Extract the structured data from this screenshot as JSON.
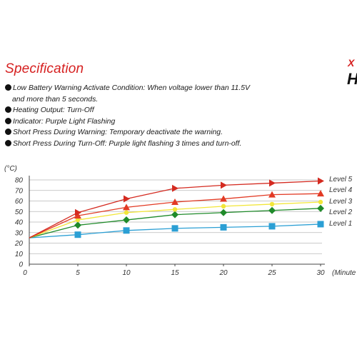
{
  "header": {
    "title": "Specification",
    "edge_mark_top": "X",
    "edge_mark_bottom": "H"
  },
  "specs": [
    {
      "text": "Low Battery Warning Activate Condition: When voltage lower than 11.5V"
    },
    {
      "text": "and more than 5 seconds.",
      "continuation": true
    },
    {
      "text": "Heating Output: Turn-Off"
    },
    {
      "text": "Indicator: Purple Light Flashing"
    },
    {
      "text": "Short Press During Warning: Temporary deactivate the warning."
    },
    {
      "text": "Short Press During Turn-Off: Purple light flashing 3 times and turn-off."
    }
  ],
  "chart_data": {
    "type": "line",
    "y_unit_label": "(°C)",
    "x_unit_label": "(Minute",
    "x": [
      0,
      5,
      10,
      15,
      20,
      25,
      30
    ],
    "x_ticks": [
      "0",
      "5",
      "10",
      "15",
      "20",
      "25",
      "30"
    ],
    "y_ticks": [
      "0",
      "10",
      "20",
      "30",
      "40",
      "50",
      "60",
      "70",
      "80"
    ],
    "xlim": [
      0,
      30
    ],
    "ylim": [
      0,
      80
    ],
    "grid": "horizontal",
    "legend": "labels at line ends, right",
    "series": [
      {
        "name": "Level 5",
        "color": "#d42a20",
        "marker": "triangle-right",
        "values": [
          25,
          49,
          62,
          72,
          75,
          77,
          79
        ]
      },
      {
        "name": "Level 4",
        "color": "#e23a24",
        "marker": "triangle-up",
        "values": [
          25,
          46,
          54,
          59,
          62,
          66,
          67
        ]
      },
      {
        "name": "Level 3",
        "color": "#f2e63a",
        "marker": "circle",
        "values": [
          25,
          42,
          49,
          52,
          55,
          57,
          59
        ]
      },
      {
        "name": "Level 2",
        "color": "#1f8a2a",
        "marker": "diamond",
        "values": [
          25,
          37,
          42,
          47,
          49,
          51,
          53
        ]
      },
      {
        "name": "Level 1",
        "color": "#2b9fd4",
        "marker": "square",
        "values": [
          25,
          28,
          32,
          34,
          35,
          36,
          38
        ]
      }
    ]
  }
}
